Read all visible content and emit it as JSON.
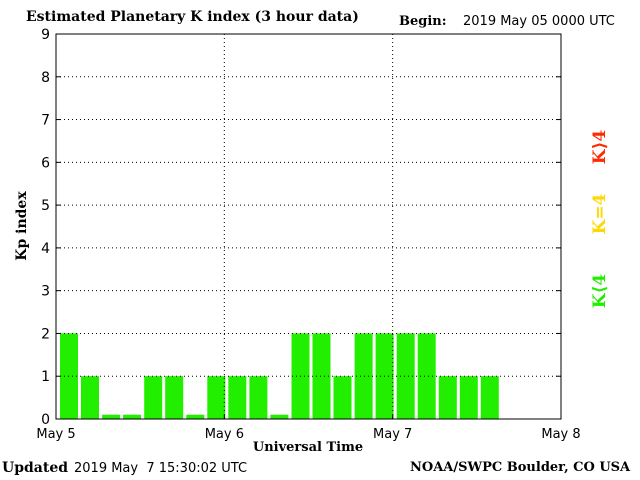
{
  "header": {
    "title": "Estimated Planetary K index (3 hour data)",
    "begin_label": "Begin:",
    "begin_value": "2019 May 05 0000 UTC"
  },
  "footer": {
    "updated_label": "Updated",
    "updated_value": "2019 May  7 15:30:02 UTC",
    "source": "NOAA/SWPC Boulder, CO USA"
  },
  "legend": {
    "high": {
      "label": "K⟩4",
      "color": "#ff2a00"
    },
    "equal": {
      "label": "K=4",
      "color": "#ffd800"
    },
    "low": {
      "label": "K⟨4",
      "color": "#22ee00"
    }
  },
  "chart_data": {
    "type": "bar",
    "title": "Estimated Planetary K index (3 hour data)",
    "xlabel": "Universal Time",
    "ylabel": "Kp index",
    "ylim": [
      0,
      9
    ],
    "yticks": [
      "0",
      "1",
      "2",
      "3",
      "4",
      "5",
      "6",
      "7",
      "8",
      "9"
    ],
    "xticks": [
      "May 5",
      "May 6",
      "May 7",
      "May 8"
    ],
    "bar_color": "#22ee00",
    "grid": true,
    "categories": [
      "May 5 00",
      "May 5 03",
      "May 5 06",
      "May 5 09",
      "May 5 12",
      "May 5 15",
      "May 5 18",
      "May 5 21",
      "May 6 00",
      "May 6 03",
      "May 6 06",
      "May 6 09",
      "May 6 12",
      "May 6 15",
      "May 6 18",
      "May 6 21",
      "May 7 00",
      "May 7 03",
      "May 7 06",
      "May 7 09",
      "May 7 12"
    ],
    "values": [
      2,
      1,
      0,
      0,
      1,
      1,
      0,
      1,
      1,
      1,
      0,
      2,
      2,
      1,
      2,
      2,
      2,
      2,
      1,
      1,
      1
    ]
  }
}
